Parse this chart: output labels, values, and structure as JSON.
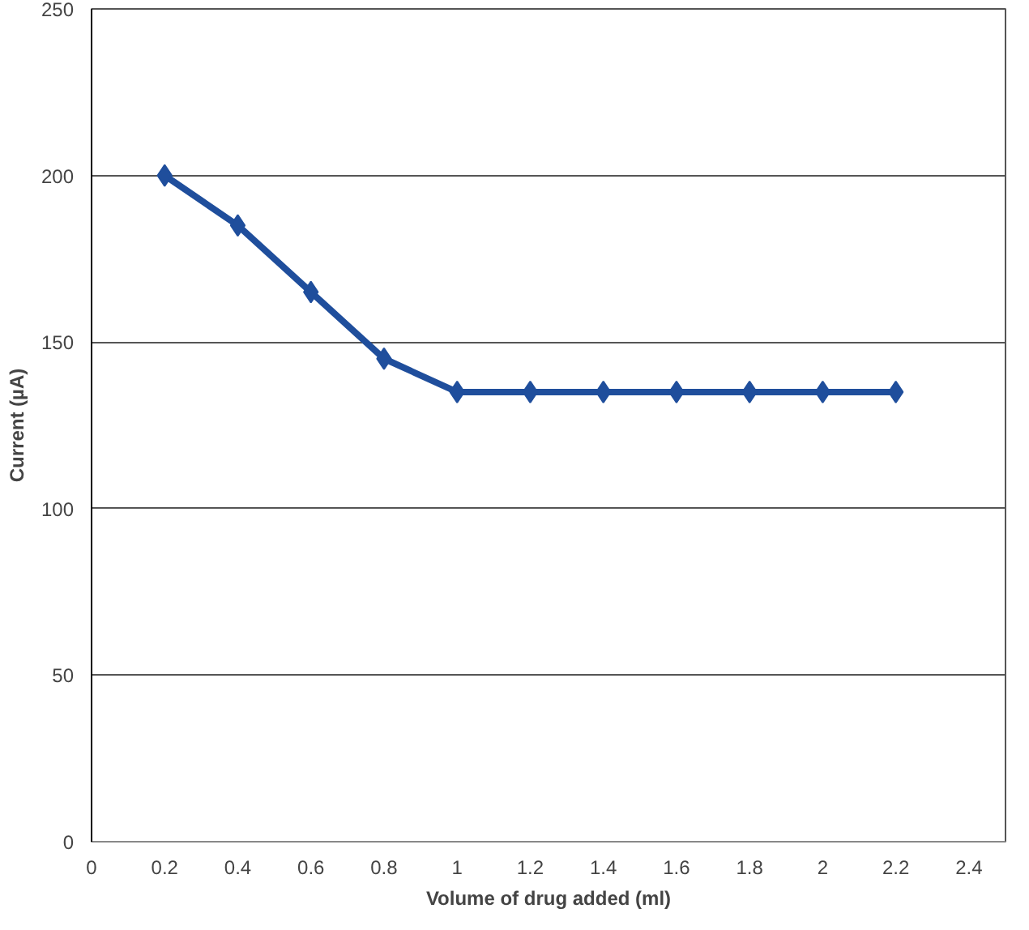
{
  "chart_data": {
    "type": "line",
    "xlabel": "Volume of drug added (ml)",
    "ylabel": "Current (µA)",
    "x": [
      0.2,
      0.4,
      0.6,
      0.8,
      1,
      1.2,
      1.4,
      1.6,
      1.8,
      2,
      2.2
    ],
    "series": [
      {
        "color": "#1f4e9c",
        "values": [
          200,
          185,
          165,
          145,
          135,
          135,
          135,
          135,
          135,
          135,
          135
        ]
      }
    ],
    "xlim": [
      0,
      2.5
    ],
    "xticks": [
      0,
      0.2,
      0.4,
      0.6,
      0.8,
      1,
      1.2,
      1.4,
      1.6,
      1.8,
      2,
      2.2,
      2.4
    ],
    "ylim": [
      0,
      250
    ],
    "yticks": [
      0,
      50,
      100,
      150,
      200,
      250
    ],
    "grid": "y",
    "marker": "diamond",
    "line_style": "solid"
  }
}
